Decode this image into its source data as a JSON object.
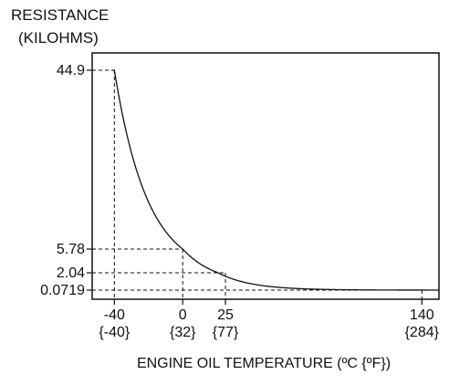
{
  "chart_data": {
    "type": "line",
    "title": "",
    "ylabel_lines": [
      "RESISTANCE",
      "(KILOHMS)"
    ],
    "xlabel": "ENGINE OIL TEMPERATURE (ºC {ºF})",
    "xlim": [
      -53,
      150
    ],
    "y_scale": "piecewise (non-linear, as drawn)",
    "y_ticks": [
      "0.0719",
      "2.04",
      "5.78",
      "44.9"
    ],
    "y_tick_values": [
      0.0719,
      2.04,
      5.78,
      44.9
    ],
    "x_ticks": [
      {
        "value": -40,
        "celsius": "-40",
        "fahrenheit": "{-40}"
      },
      {
        "value": 0,
        "celsius": "0",
        "fahrenheit": "{32}"
      },
      {
        "value": 25,
        "celsius": "25",
        "fahrenheit": "{77}"
      },
      {
        "value": 140,
        "celsius": "140",
        "fahrenheit": "{284}"
      }
    ],
    "grid": "dashed reference lines to marked points",
    "series": [
      {
        "color": "#111111",
        "points": [
          {
            "x": -40,
            "y": 44.9
          },
          {
            "x": 0,
            "y": 5.78
          },
          {
            "x": 25,
            "y": 2.04
          },
          {
            "x": 140,
            "y": 0.0719
          }
        ]
      }
    ],
    "reference_points": [
      {
        "x": -40,
        "y": 44.9
      },
      {
        "x": 0,
        "y": 5.78
      },
      {
        "x": 25,
        "y": 2.04
      },
      {
        "x": 140,
        "y": 0.0719
      }
    ]
  }
}
